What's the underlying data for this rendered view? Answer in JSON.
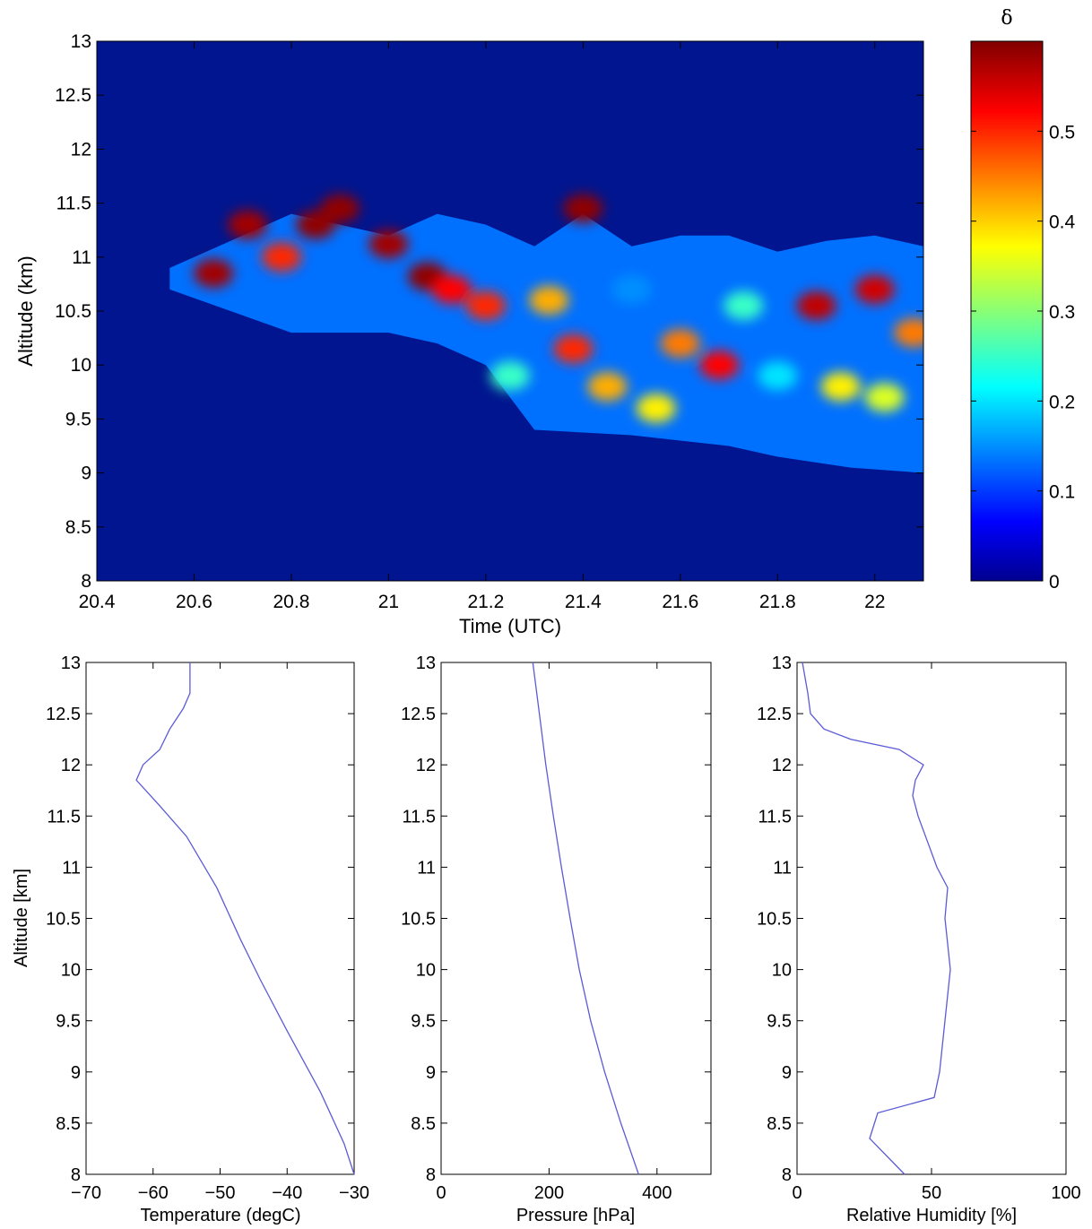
{
  "chart_data": [
    {
      "type": "heatmap",
      "title": "",
      "xlabel": "Time (UTC)",
      "ylabel": "Altitude (km)",
      "xlim": [
        20.4,
        22.1
      ],
      "ylim": [
        8,
        13
      ],
      "xticks": [
        "20.4",
        "20.6",
        "20.8",
        "21",
        "21.2",
        "21.4",
        "21.6",
        "21.8",
        "22"
      ],
      "yticks": [
        "8",
        "8.5",
        "9",
        "9.5",
        "10",
        "10.5",
        "11",
        "11.5",
        "12",
        "12.5",
        "13"
      ],
      "colorbar": {
        "label": "δ",
        "range": [
          0,
          0.6
        ],
        "ticks": [
          "0",
          "0.1",
          "0.2",
          "0.3",
          "0.4",
          "0.5"
        ],
        "colormap": "jet"
      },
      "background_value": 0,
      "cloud_base_km": [
        [
          20.55,
          10.7
        ],
        [
          20.8,
          10.3
        ],
        [
          21.0,
          10.3
        ],
        [
          21.1,
          10.2
        ],
        [
          21.2,
          10.0
        ],
        [
          21.25,
          9.7
        ],
        [
          21.3,
          9.4
        ],
        [
          21.5,
          9.35
        ],
        [
          21.7,
          9.25
        ],
        [
          21.8,
          9.15
        ],
        [
          21.95,
          9.05
        ],
        [
          22.1,
          9.0
        ]
      ],
      "cloud_top_km": [
        [
          20.55,
          10.9
        ],
        [
          20.8,
          11.4
        ],
        [
          21.0,
          11.2
        ],
        [
          21.1,
          11.4
        ],
        [
          21.2,
          11.3
        ],
        [
          21.3,
          11.1
        ],
        [
          21.4,
          11.4
        ],
        [
          21.5,
          11.1
        ],
        [
          21.6,
          11.2
        ],
        [
          21.7,
          11.2
        ],
        [
          21.8,
          11.05
        ],
        [
          21.9,
          11.15
        ],
        [
          22.0,
          11.2
        ],
        [
          22.1,
          11.1
        ]
      ],
      "cells": [
        {
          "x": 20.64,
          "y": 10.85,
          "value": 0.58
        },
        {
          "x": 20.71,
          "y": 11.3,
          "value": 0.58
        },
        {
          "x": 20.78,
          "y": 11.0,
          "value": 0.5
        },
        {
          "x": 20.85,
          "y": 11.3,
          "value": 0.59
        },
        {
          "x": 20.9,
          "y": 11.45,
          "value": 0.59
        },
        {
          "x": 21.0,
          "y": 11.12,
          "value": 0.58
        },
        {
          "x": 21.08,
          "y": 10.82,
          "value": 0.59
        },
        {
          "x": 21.13,
          "y": 10.7,
          "value": 0.52
        },
        {
          "x": 21.2,
          "y": 10.55,
          "value": 0.5
        },
        {
          "x": 21.33,
          "y": 10.6,
          "value": 0.42
        },
        {
          "x": 21.4,
          "y": 11.45,
          "value": 0.59
        },
        {
          "x": 21.38,
          "y": 10.15,
          "value": 0.5
        },
        {
          "x": 21.45,
          "y": 9.8,
          "value": 0.42
        },
        {
          "x": 21.55,
          "y": 9.6,
          "value": 0.38
        },
        {
          "x": 21.6,
          "y": 10.2,
          "value": 0.45
        },
        {
          "x": 21.68,
          "y": 10.0,
          "value": 0.52
        },
        {
          "x": 21.73,
          "y": 10.55,
          "value": 0.25
        },
        {
          "x": 21.8,
          "y": 9.9,
          "value": 0.2
        },
        {
          "x": 21.88,
          "y": 10.55,
          "value": 0.56
        },
        {
          "x": 21.93,
          "y": 9.8,
          "value": 0.38
        },
        {
          "x": 22.0,
          "y": 10.7,
          "value": 0.55
        },
        {
          "x": 22.02,
          "y": 9.7,
          "value": 0.35
        },
        {
          "x": 22.08,
          "y": 10.3,
          "value": 0.45
        },
        {
          "x": 21.5,
          "y": 10.7,
          "value": 0.15
        },
        {
          "x": 21.25,
          "y": 9.9,
          "value": 0.25
        }
      ]
    },
    {
      "type": "line",
      "xlabel": "Temperature (degC)",
      "ylabel": "Altitude [km]",
      "xlim": [
        -70,
        -30
      ],
      "ylim": [
        8,
        13
      ],
      "xticks": [
        "−70",
        "−60",
        "−50",
        "−40",
        "−30"
      ],
      "yticks": [
        "8",
        "8.5",
        "9",
        "9.5",
        "10",
        "10.5",
        "11",
        "11.5",
        "12",
        "12.5",
        "13"
      ],
      "series": [
        {
          "points": [
            [
              -30,
              8
            ],
            [
              -31.5,
              8.3
            ],
            [
              -35,
              8.8
            ],
            [
              -40,
              9.4
            ],
            [
              -44,
              9.9
            ],
            [
              -47,
              10.3
            ],
            [
              -50.5,
              10.8
            ],
            [
              -55,
              11.3
            ],
            [
              -59,
              11.6
            ],
            [
              -62.5,
              11.85
            ],
            [
              -61.5,
              12.0
            ],
            [
              -59,
              12.15
            ],
            [
              -57.5,
              12.35
            ],
            [
              -55.5,
              12.55
            ],
            [
              -54.5,
              12.7
            ],
            [
              -54.5,
              13.0
            ]
          ]
        }
      ]
    },
    {
      "type": "line",
      "xlabel": "Pressure [hPa]",
      "ylabel": "",
      "xlim": [
        0,
        500
      ],
      "ylim": [
        8,
        13
      ],
      "xticks": [
        "0",
        "200",
        "400"
      ],
      "yticks": [
        "8",
        "8.5",
        "9",
        "9.5",
        "10",
        "10.5",
        "11",
        "11.5",
        "12",
        "12.5",
        "13"
      ],
      "series": [
        {
          "points": [
            [
              366,
              8
            ],
            [
              333,
              8.5
            ],
            [
              303,
              9
            ],
            [
              277,
              9.5
            ],
            [
              256,
              10
            ],
            [
              239,
              10.5
            ],
            [
              223,
              11
            ],
            [
              208,
              11.5
            ],
            [
              194,
              12
            ],
            [
              182,
              12.5
            ],
            [
              170,
              13
            ]
          ]
        }
      ]
    },
    {
      "type": "line",
      "xlabel": "Relative Humidity [%]",
      "ylabel": "",
      "xlim": [
        0,
        100
      ],
      "ylim": [
        8,
        13
      ],
      "xticks": [
        "0",
        "50",
        "100"
      ],
      "yticks": [
        "8",
        "8.5",
        "9",
        "9.5",
        "10",
        "10.5",
        "11",
        "11.5",
        "12",
        "12.5",
        "13"
      ],
      "series": [
        {
          "points": [
            [
              40,
              8
            ],
            [
              27,
              8.35
            ],
            [
              30,
              8.6
            ],
            [
              51,
              8.75
            ],
            [
              53,
              9.0
            ],
            [
              55,
              9.5
            ],
            [
              57,
              10.0
            ],
            [
              55,
              10.5
            ],
            [
              56,
              10.8
            ],
            [
              52,
              11.0
            ],
            [
              45,
              11.5
            ],
            [
              43,
              11.7
            ],
            [
              44,
              11.85
            ],
            [
              47,
              12.0
            ],
            [
              38,
              12.15
            ],
            [
              20,
              12.25
            ],
            [
              10,
              12.35
            ],
            [
              5,
              12.5
            ],
            [
              4,
              12.7
            ],
            [
              2,
              13.0
            ]
          ]
        }
      ]
    }
  ],
  "colors": {
    "background_cell": "#00158f",
    "profile_line": "#5b5bd6",
    "axis": "#000000"
  }
}
